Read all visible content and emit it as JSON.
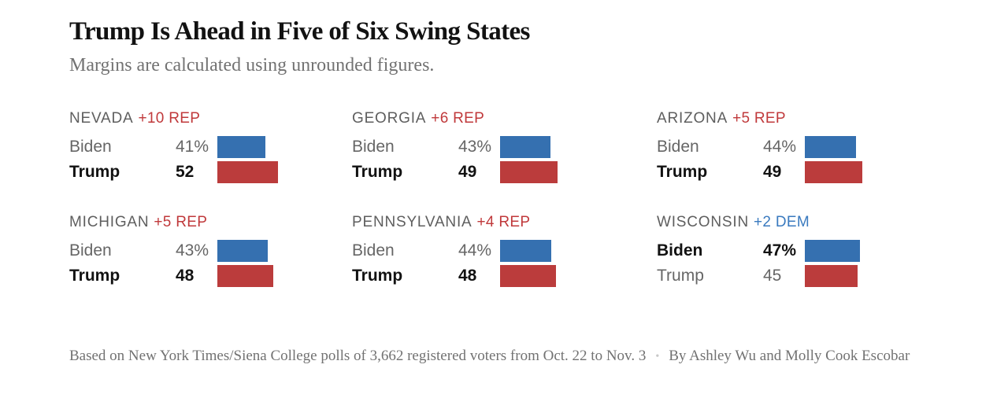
{
  "title": "Trump Is Ahead in Five of Six Swing States",
  "subtitle": "Margins are calculated using unrounded figures.",
  "colors": {
    "biden": "#3570b0",
    "trump": "#bb3c3c",
    "rep_margin": "#c0393b",
    "dem_margin": "#3a7abf"
  },
  "chart_data": {
    "type": "bar",
    "layout": "small-multiples",
    "panels": [
      {
        "state": "NEVADA",
        "margin": "+10 REP",
        "leader": "rep",
        "rows": [
          {
            "candidate": "Biden",
            "value": 41,
            "label": "41%",
            "party": "dem",
            "leading": false
          },
          {
            "candidate": "Trump",
            "value": 52,
            "label": "52",
            "party": "rep",
            "leading": true
          }
        ]
      },
      {
        "state": "GEORGIA",
        "margin": "+6 REP",
        "leader": "rep",
        "rows": [
          {
            "candidate": "Biden",
            "value": 43,
            "label": "43%",
            "party": "dem",
            "leading": false
          },
          {
            "candidate": "Trump",
            "value": 49,
            "label": "49",
            "party": "rep",
            "leading": true
          }
        ]
      },
      {
        "state": "ARIZONA",
        "margin": "+5 REP",
        "leader": "rep",
        "rows": [
          {
            "candidate": "Biden",
            "value": 44,
            "label": "44%",
            "party": "dem",
            "leading": false
          },
          {
            "candidate": "Trump",
            "value": 49,
            "label": "49",
            "party": "rep",
            "leading": true
          }
        ]
      },
      {
        "state": "MICHIGAN",
        "margin": "+5 REP",
        "leader": "rep",
        "rows": [
          {
            "candidate": "Biden",
            "value": 43,
            "label": "43%",
            "party": "dem",
            "leading": false
          },
          {
            "candidate": "Trump",
            "value": 48,
            "label": "48",
            "party": "rep",
            "leading": true
          }
        ]
      },
      {
        "state": "PENNSYLVANIA",
        "margin": "+4 REP",
        "leader": "rep",
        "rows": [
          {
            "candidate": "Biden",
            "value": 44,
            "label": "44%",
            "party": "dem",
            "leading": false
          },
          {
            "candidate": "Trump",
            "value": 48,
            "label": "48",
            "party": "rep",
            "leading": true
          }
        ]
      },
      {
        "state": "WISCONSIN",
        "margin": "+2 DEM",
        "leader": "dem",
        "rows": [
          {
            "candidate": "Biden",
            "value": 47,
            "label": "47%",
            "party": "dem",
            "leading": true
          },
          {
            "candidate": "Trump",
            "value": 45,
            "label": "45",
            "party": "rep",
            "leading": false
          }
        ]
      }
    ]
  },
  "footer": {
    "source": "Based on New York Times/Siena College polls of 3,662 registered voters from Oct. 22 to Nov. 3",
    "byline": "By Ashley Wu and Molly Cook Escobar"
  }
}
